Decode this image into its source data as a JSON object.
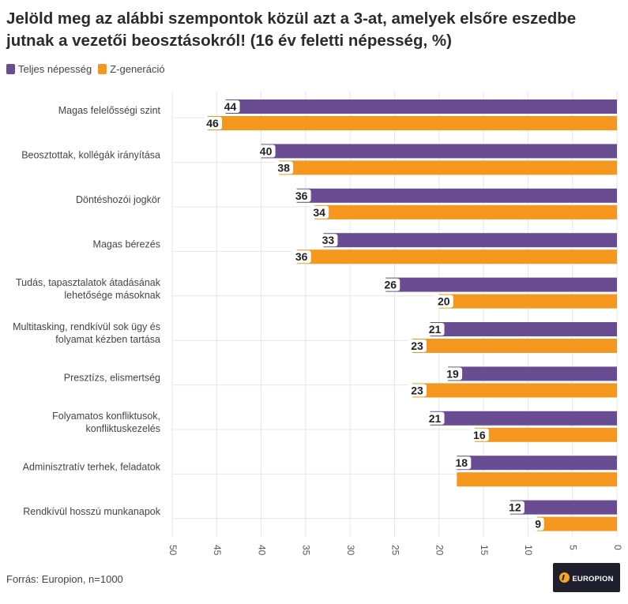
{
  "title": "Jelöld meg az alábbi szempontok közül azt a 3-at, amelyek elsőre eszedbe jutnak a vezetői beosztásokról! (16 év feletti népesség, %)",
  "source": "Forrás: Europion, n=1000",
  "logo": {
    "text": "EUROPION"
  },
  "colors": {
    "teljes": "#6a4c93",
    "zgen": "#f5961e"
  },
  "chart_data": {
    "type": "bar",
    "orientation": "horizontal",
    "x_reversed": true,
    "xlim": [
      0,
      50
    ],
    "xticks": [
      50,
      45,
      40,
      35,
      30,
      25,
      20,
      15,
      10,
      5,
      0
    ],
    "legend": [
      "Teljes népesség",
      "Z-generáció"
    ],
    "categories": [
      [
        "Magas felelősségi szint"
      ],
      [
        "Beosztottak, kollégák irányítása"
      ],
      [
        "Döntéshozói jogkör"
      ],
      [
        "Magas bérezés"
      ],
      [
        "Tudás, tapasztalatok átadásának",
        "lehetősége másoknak"
      ],
      [
        "Multitasking, rendkívül sok ügy és",
        "folyamat kézben tartása"
      ],
      [
        "Presztízs, elismertség"
      ],
      [
        "Folyamatos konfliktusok,",
        "konfliktuskezelés"
      ],
      [
        "Adminisztratív terhek, feladatok"
      ],
      [
        "Rendkívül hosszú munkanapok"
      ]
    ],
    "series": [
      {
        "name": "Teljes népesség",
        "values": [
          44,
          40,
          36,
          33,
          26,
          21,
          19,
          21,
          18,
          12
        ],
        "labels": [
          "44",
          "40",
          "36",
          "33",
          "26",
          "21",
          "19",
          "21",
          "18",
          "12"
        ]
      },
      {
        "name": "Z-generáció",
        "values": [
          46,
          38,
          34,
          36,
          20,
          23,
          23,
          16,
          18,
          9
        ],
        "labels": [
          "46",
          "38",
          "34",
          "36",
          "20",
          "23",
          "23",
          "16",
          "",
          "9"
        ]
      }
    ]
  }
}
